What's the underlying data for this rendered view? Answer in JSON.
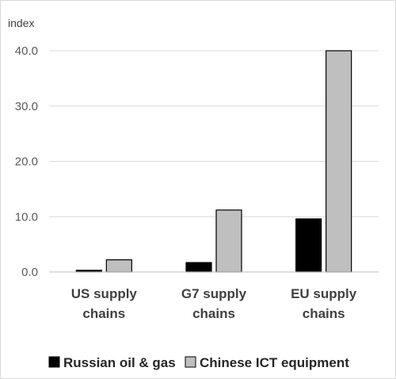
{
  "chart_data": {
    "type": "bar",
    "unit_label": "index",
    "categories": [
      [
        "US supply",
        "chains"
      ],
      [
        "G7 supply",
        "chains"
      ],
      [
        "EU supply",
        "chains"
      ]
    ],
    "series": [
      {
        "name": "Russian oil & gas",
        "values": [
          0.3,
          1.7,
          9.6
        ],
        "color": "#000000"
      },
      {
        "name": "Chinese ICT equipment",
        "values": [
          2.2,
          11.2,
          40.0
        ],
        "color": "#bfbfbf"
      }
    ],
    "ylim": [
      0,
      40
    ],
    "yticks": [
      "0.0",
      "10.0",
      "20.0",
      "30.0",
      "40.0"
    ],
    "grid": true,
    "legend": "bottom"
  }
}
